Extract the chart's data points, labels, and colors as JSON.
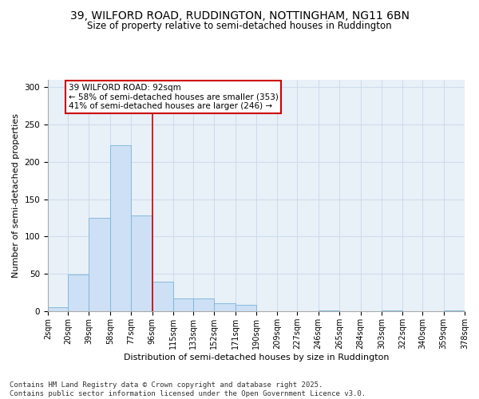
{
  "title_line1": "39, WILFORD ROAD, RUDDINGTON, NOTTINGHAM, NG11 6BN",
  "title_line2": "Size of property relative to semi-detached houses in Ruddington",
  "xlabel": "Distribution of semi-detached houses by size in Ruddington",
  "ylabel": "Number of semi-detached properties",
  "bin_edges": [
    2,
    20,
    39,
    58,
    77,
    96,
    115,
    133,
    152,
    171,
    190,
    209,
    227,
    246,
    265,
    284,
    303,
    322,
    340,
    359,
    378
  ],
  "bin_labels": [
    "2sqm",
    "20sqm",
    "39sqm",
    "58sqm",
    "77sqm",
    "96sqm",
    "115sqm",
    "133sqm",
    "152sqm",
    "171sqm",
    "190sqm",
    "209sqm",
    "227sqm",
    "246sqm",
    "265sqm",
    "284sqm",
    "303sqm",
    "322sqm",
    "340sqm",
    "359sqm",
    "378sqm"
  ],
  "values": [
    5,
    49,
    125,
    222,
    128,
    40,
    17,
    17,
    11,
    9,
    0,
    0,
    0,
    1,
    0,
    0,
    1,
    0,
    0,
    1
  ],
  "bar_color": "#cde0f5",
  "bar_edge_color": "#7ab4d8",
  "red_line_x": 96,
  "annotation_title": "39 WILFORD ROAD: 92sqm",
  "annotation_line1": "← 58% of semi-detached houses are smaller (353)",
  "annotation_line2": "41% of semi-detached houses are larger (246) →",
  "annotation_box_facecolor": "#ffffff",
  "annotation_box_edgecolor": "#cc0000",
  "red_line_color": "#cc0000",
  "grid_color": "#c8d8ea",
  "background_color": "#e8f0f8",
  "ylim": [
    0,
    310
  ],
  "yticks": [
    0,
    50,
    100,
    150,
    200,
    250,
    300
  ],
  "footer_line1": "Contains HM Land Registry data © Crown copyright and database right 2025.",
  "footer_line2": "Contains public sector information licensed under the Open Government Licence v3.0."
}
